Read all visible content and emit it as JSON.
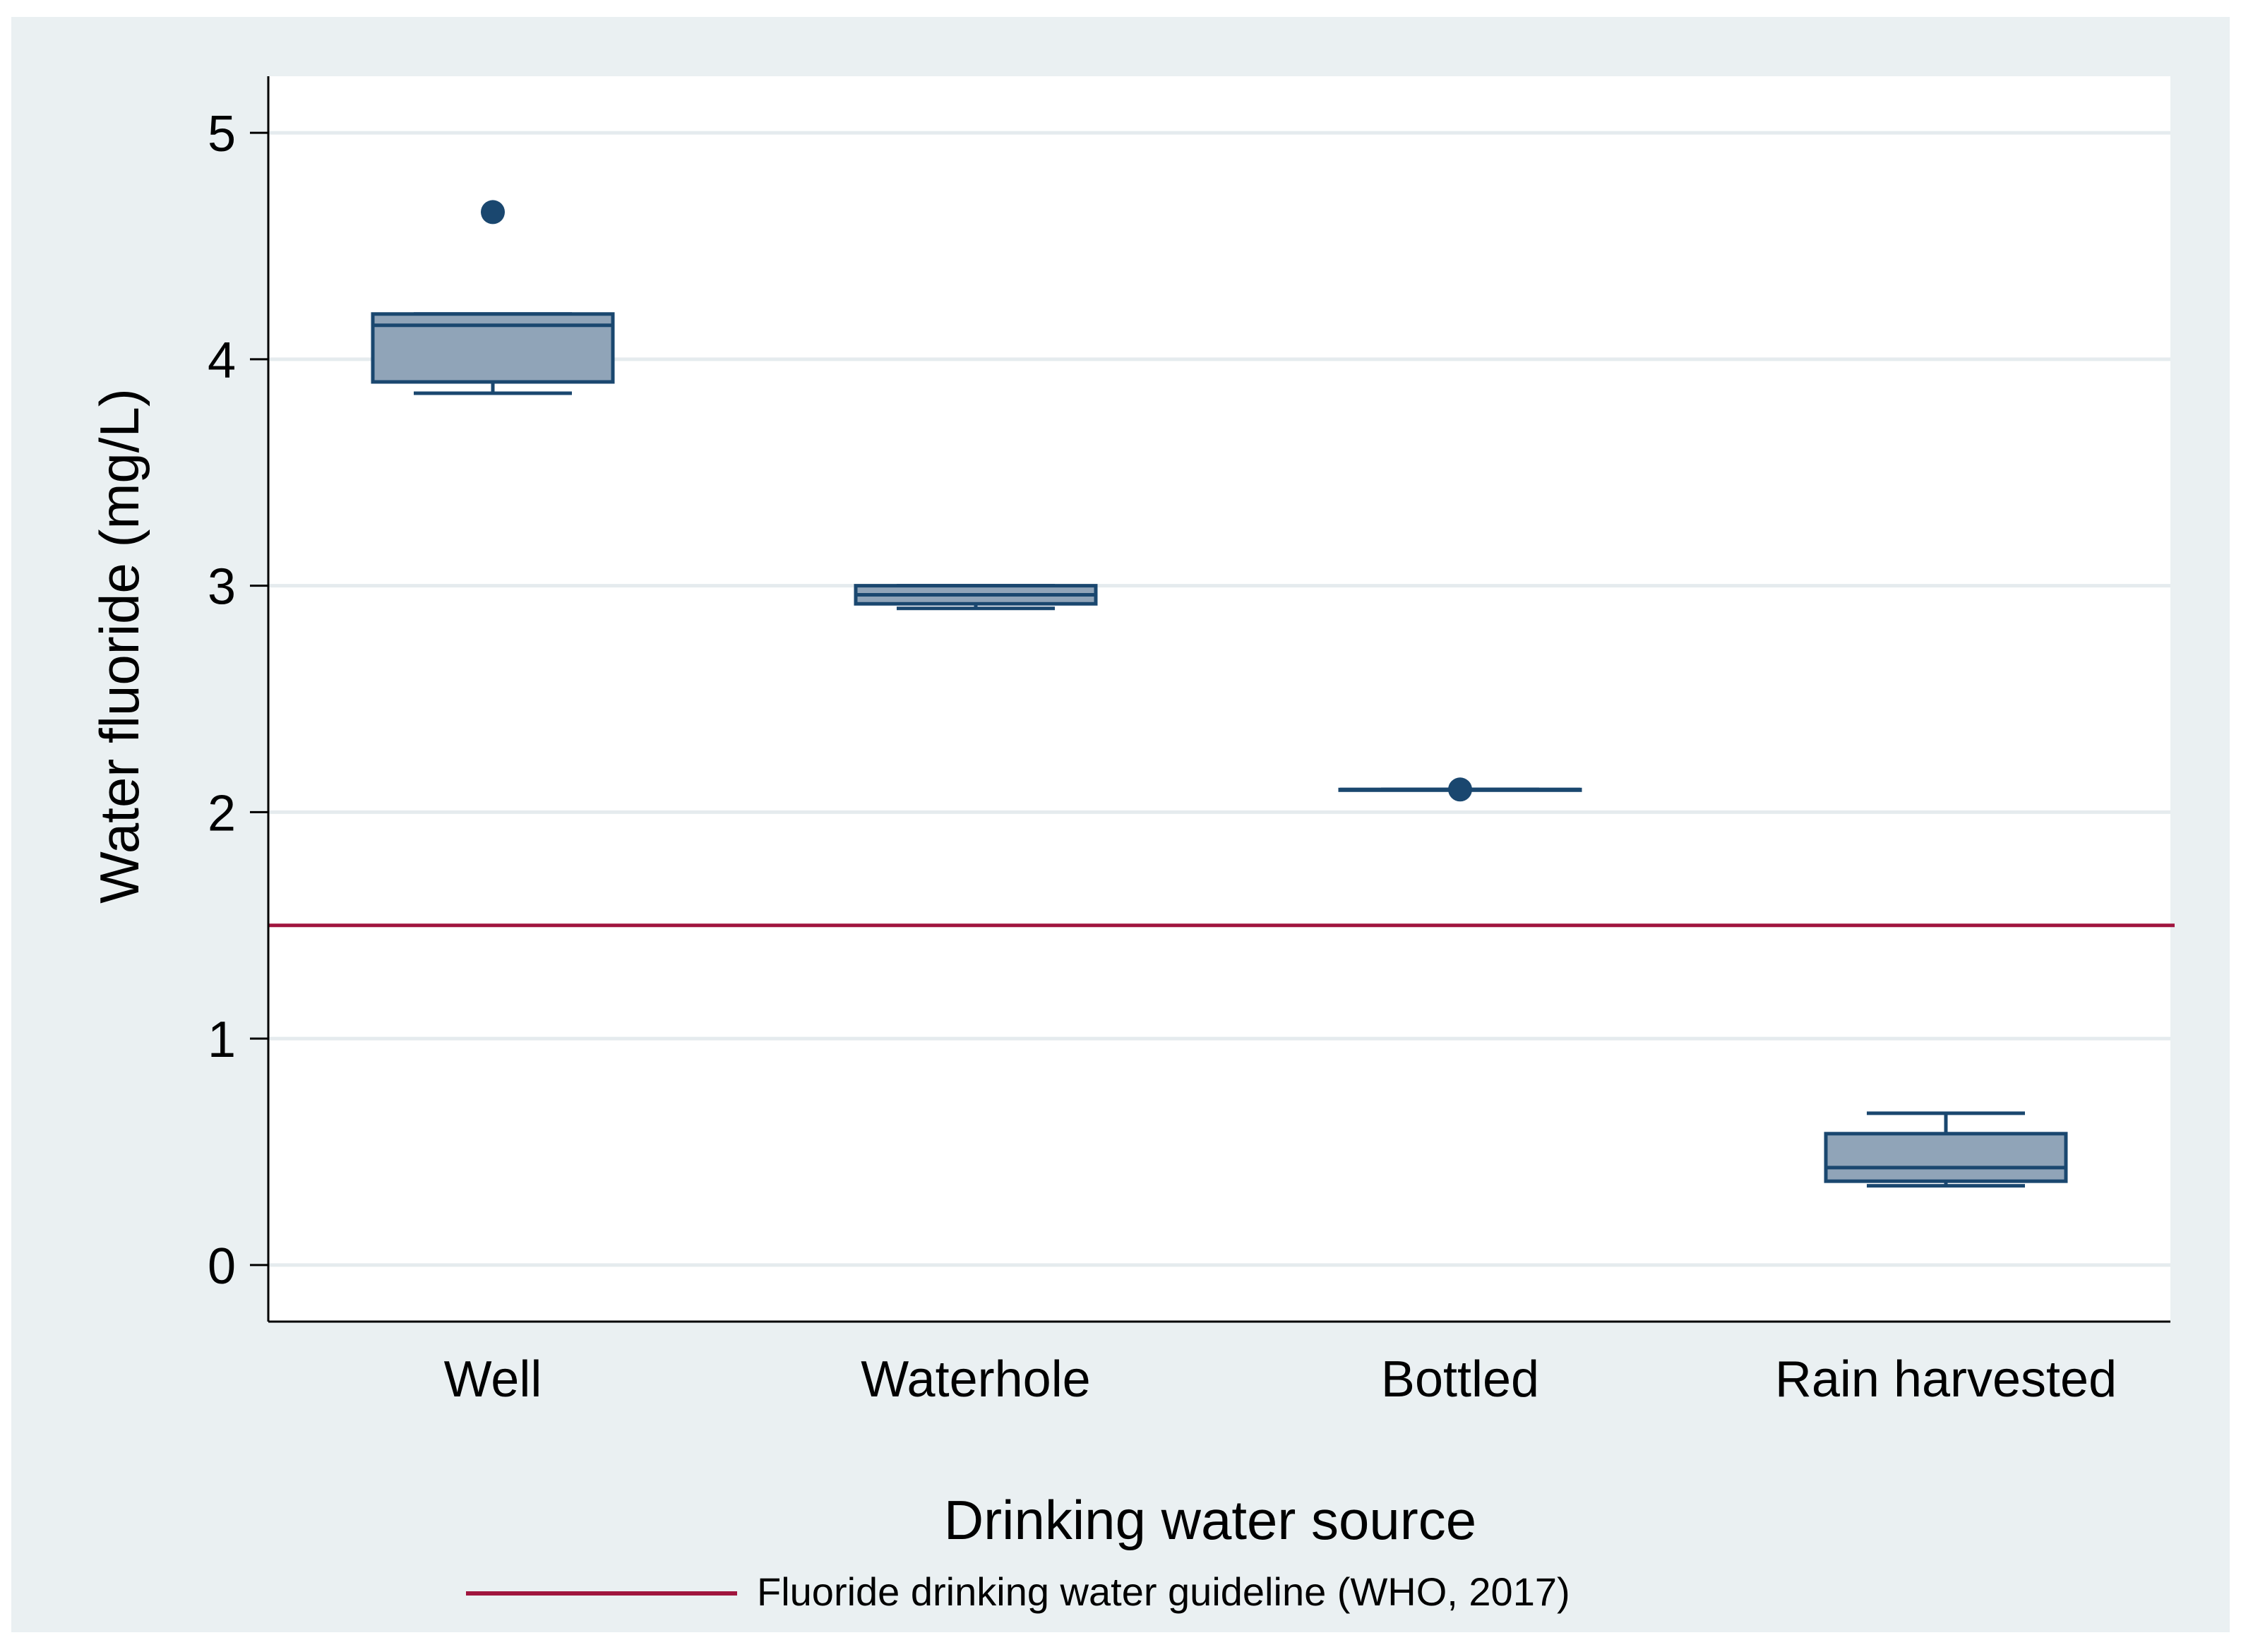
{
  "chart_data": {
    "type": "box",
    "title": "",
    "xlabel": "Drinking water source",
    "ylabel": "Water fluoride (mg/L)",
    "ylim": [
      -0.25,
      5.25
    ],
    "yticks": [
      0,
      1,
      2,
      3,
      4,
      5
    ],
    "grid": true,
    "legend_position": "bottom",
    "categories": [
      "Well",
      "Waterhole",
      "Bottled",
      "Rain harvested"
    ],
    "boxes": [
      {
        "category": "Well",
        "min": 3.85,
        "q1": 3.9,
        "median": 4.15,
        "q3": 4.2,
        "max": 4.2,
        "outliers": [
          4.65
        ]
      },
      {
        "category": "Waterhole",
        "min": 2.9,
        "q1": 2.92,
        "median": 2.96,
        "q3": 3.0,
        "max": 3.0,
        "outliers": []
      },
      {
        "category": "Bottled",
        "min": 2.1,
        "q1": 2.1,
        "median": 2.1,
        "q3": 2.1,
        "max": 2.1,
        "outliers": [
          2.1
        ]
      },
      {
        "category": "Rain harvested",
        "min": 0.35,
        "q1": 0.37,
        "median": 0.43,
        "q3": 0.58,
        "max": 0.67,
        "outliers": []
      }
    ],
    "reference_line": {
      "label": "Fluoride drinking water guideline (WHO, 2017)",
      "value": 1.5
    },
    "colors": {
      "outer_bg": "#eaf0f2",
      "plot_bg": "#ffffff",
      "grid": "#e5ebee",
      "box_fill": "#90a4b8",
      "box_stroke": "#1a476f",
      "reference_line": "#a0153e"
    }
  }
}
